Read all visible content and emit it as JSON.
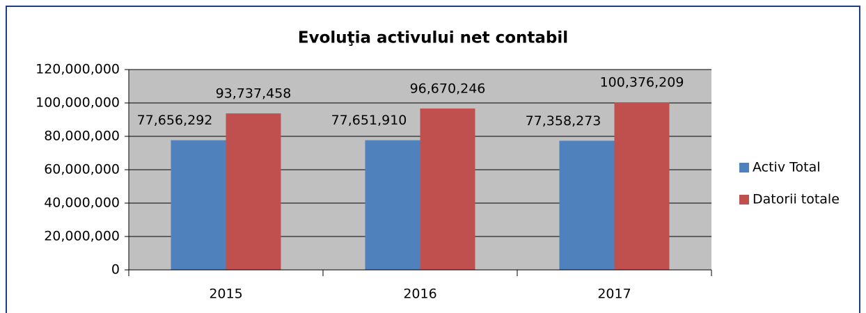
{
  "chart_data": {
    "type": "bar",
    "title": "Evoluţia activului net contabil",
    "categories": [
      "2015",
      "2016",
      "2017"
    ],
    "series": [
      {
        "name": "Activ Total",
        "color": "#4f81bd",
        "values": [
          77656292,
          77651910,
          77358273
        ],
        "value_labels": [
          "77,656,292",
          "77,651,910",
          "77,358,273"
        ]
      },
      {
        "name": "Datorii totale",
        "color": "#c0504d",
        "values": [
          93737458,
          96670246,
          100376209
        ],
        "value_labels": [
          "93,737,458",
          "96,670,246",
          "100,376,209"
        ]
      }
    ],
    "ylim": [
      0,
      120000000
    ],
    "yticks": [
      0,
      {
        "value": 20000000,
        "label": "20,000,000"
      },
      {
        "value": 40000000,
        "label": "40,000,000"
      },
      {
        "value": 60000000,
        "label": "60,000,000"
      },
      {
        "value": 80000000,
        "label": "80,000,000"
      },
      {
        "value": 100000000,
        "label": "100,000,000"
      },
      {
        "value": 120000000,
        "label": "120,000,000"
      }
    ],
    "grid": true,
    "legend": "right"
  }
}
